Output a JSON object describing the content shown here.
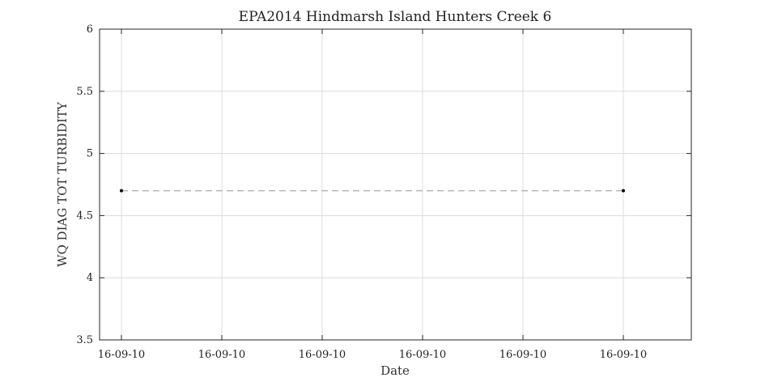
{
  "chart_data": {
    "type": "line",
    "title": "EPA2014 Hindmarsh Island Hunters Creek 6",
    "xlabel": "Date",
    "ylabel": "WQ DIAG TOT TURBIDITY",
    "xtick_labels": [
      "16-09-10",
      "16-09-10",
      "16-09-10",
      "16-09-10",
      "16-09-10",
      "16-09-10"
    ],
    "ylim": [
      3.5,
      6
    ],
    "yticks": [
      3.5,
      4,
      4.5,
      5,
      5.5,
      6
    ],
    "ytick_labels": [
      "3.5",
      "4",
      "4.5",
      "5",
      "5.5",
      "6"
    ],
    "grid": true,
    "series": [
      {
        "points": [
          {
            "x": "16-09-10",
            "y": 4.7
          },
          {
            "x": "16-09-10",
            "y": 4.7
          }
        ],
        "line_style": "dashed",
        "line_color": "#b3b3b3",
        "marker_color": "#000000"
      }
    ]
  }
}
